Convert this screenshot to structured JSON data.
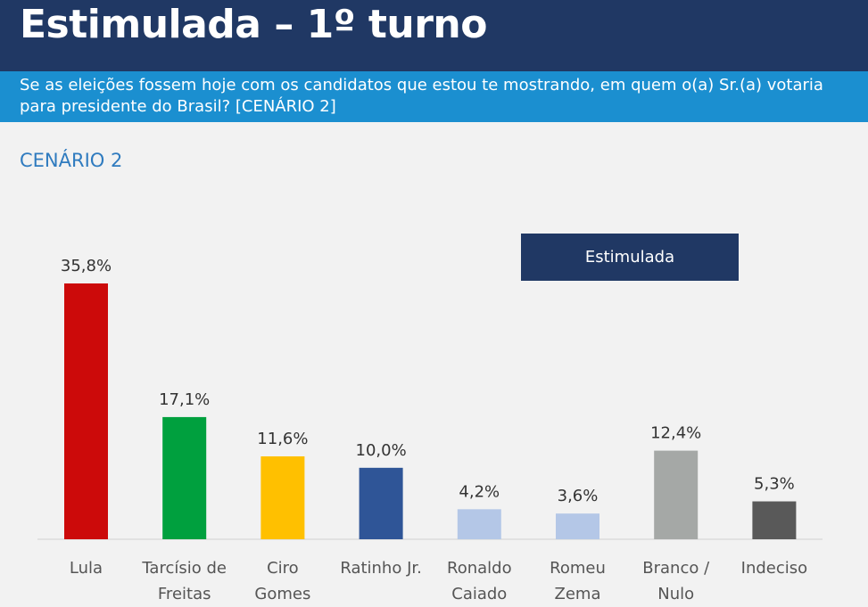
{
  "header": {
    "title": "Estimulada – 1º turno",
    "question": "Se as eleições fossem hoje com os candidatos que estou te mostrando, em quem o(a) Sr.(a) votaria para presidente do Brasil? [CENÁRIO 2]",
    "scenario_label": "CENÁRIO 2"
  },
  "colors": {
    "header_bg": "#203864",
    "subheader_bg": "#1b8fd0"
  },
  "chart_data": {
    "type": "bar",
    "title": "CENÁRIO 2",
    "legend": [
      "Estimulada"
    ],
    "legend_position": "top-right",
    "categories": [
      [
        "Lula"
      ],
      [
        "Tarcísio de",
        "Freitas"
      ],
      [
        "Ciro",
        "Gomes"
      ],
      [
        "Ratinho Jr."
      ],
      [
        "Ronaldo",
        "Caiado"
      ],
      [
        "Romeu",
        "Zema"
      ],
      [
        "Branco /",
        "Nulo"
      ],
      [
        "Indeciso"
      ]
    ],
    "values": [
      35.8,
      17.1,
      11.6,
      10.0,
      4.2,
      3.6,
      12.4,
      5.3
    ],
    "value_labels": [
      "35,8%",
      "17,1%",
      "11,6%",
      "10,0%",
      "4,2%",
      "3,6%",
      "12,4%",
      "5,3%"
    ],
    "bar_colors": [
      "#cc0a0a",
      "#00a03e",
      "#ffc000",
      "#2f5597",
      "#b4c7e7",
      "#b4c7e7",
      "#a5a8a6",
      "#595959"
    ],
    "ylim": [
      0,
      35.8
    ],
    "grid": false
  }
}
